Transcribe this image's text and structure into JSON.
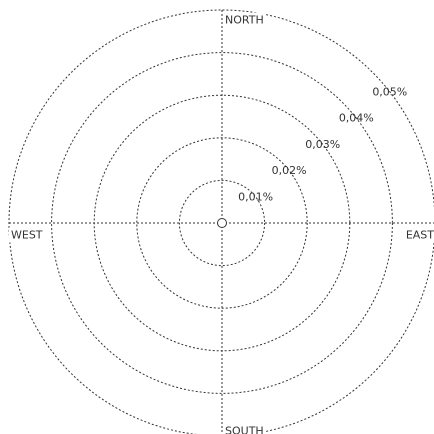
{
  "chart_data": {
    "type": "radar",
    "radial_ticks": [
      0.01,
      0.02,
      0.03,
      0.04,
      0.05
    ],
    "radial_tick_labels": [
      "0,01%",
      "0,02%",
      "0,03%",
      "0,04%",
      "0,05%"
    ],
    "directions": {
      "north": "NORTH",
      "east": "EAST",
      "south": "SOUTH",
      "west": "WEST"
    },
    "rmax": 0.05,
    "grid": true,
    "colors": {
      "grid": "#333333",
      "text": "#333333",
      "background": "#ffffff"
    }
  }
}
